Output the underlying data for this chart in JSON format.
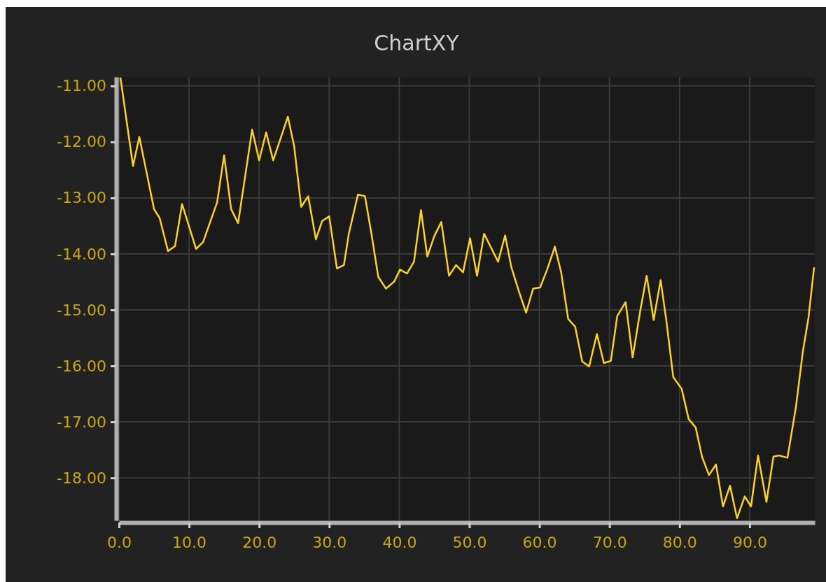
{
  "chart_data": {
    "type": "line",
    "title": "ChartXY",
    "xlim": [
      0,
      99.3
    ],
    "ylim": [
      -18.76,
      -10.84
    ],
    "xticks": [
      {
        "value": 0,
        "label": "0.0"
      },
      {
        "value": 10,
        "label": "10.0"
      },
      {
        "value": 20,
        "label": "20.0"
      },
      {
        "value": 30,
        "label": "30.0"
      },
      {
        "value": 40,
        "label": "40.0"
      },
      {
        "value": 50,
        "label": "50.0"
      },
      {
        "value": 60,
        "label": "60.0"
      },
      {
        "value": 70,
        "label": "70.0"
      },
      {
        "value": 80,
        "label": "80.0"
      },
      {
        "value": 90,
        "label": "90.0"
      }
    ],
    "yticks": [
      {
        "value": -11,
        "label": "-11.00"
      },
      {
        "value": -12,
        "label": "-12.00"
      },
      {
        "value": -13,
        "label": "-13.00"
      },
      {
        "value": -14,
        "label": "-14.00"
      },
      {
        "value": -15,
        "label": "-15.00"
      },
      {
        "value": -16,
        "label": "-16.00"
      },
      {
        "value": -17,
        "label": "-17.00"
      },
      {
        "value": -18,
        "label": "-18.00"
      }
    ],
    "grid": true,
    "series": [
      {
        "color": "#ffd21f",
        "x": [
          0.2,
          2.0,
          2.9,
          5.0,
          5.8,
          7.0,
          8.0,
          9.0,
          11.0,
          12.0,
          14.0,
          15.0,
          16.0,
          17.0,
          19.0,
          20.0,
          21.0,
          22.0,
          24.1,
          25.0,
          26.0,
          27.0,
          28.1,
          29.0,
          30.0,
          31.1,
          32.1,
          32.8,
          34.1,
          35.1,
          36.0,
          37.0,
          38.1,
          39.3,
          40.1,
          41.1,
          42.1,
          43.1,
          44.0,
          45.0,
          46.0,
          47.1,
          48.1,
          49.1,
          50.1,
          51.1,
          52.1,
          53.1,
          54.1,
          55.1,
          56.0,
          57.1,
          58.1,
          59.1,
          60.1,
          61.1,
          62.2,
          63.1,
          64.1,
          65.1,
          66.1,
          67.1,
          68.2,
          69.2,
          70.2,
          71.1,
          72.3,
          73.3,
          74.4,
          75.3,
          76.3,
          77.3,
          78.1,
          79.1,
          80.3,
          81.3,
          82.3,
          83.2,
          84.2,
          85.2,
          86.2,
          87.2,
          88.2,
          89.3,
          90.2,
          91.2,
          92.4,
          93.4,
          94.2,
          95.4,
          96.6,
          97.6,
          98.4,
          99.2
        ],
        "values": [
          -10.85,
          -12.43,
          -11.91,
          -13.2,
          -13.36,
          -13.95,
          -13.86,
          -13.11,
          -13.91,
          -13.79,
          -13.08,
          -12.24,
          -13.2,
          -13.45,
          -11.78,
          -12.33,
          -11.83,
          -12.33,
          -11.55,
          -12.08,
          -13.16,
          -12.97,
          -13.74,
          -13.41,
          -13.33,
          -14.26,
          -14.2,
          -13.64,
          -12.94,
          -12.97,
          -13.62,
          -14.41,
          -14.62,
          -14.49,
          -14.28,
          -14.35,
          -14.14,
          -13.22,
          -14.05,
          -13.68,
          -13.43,
          -14.39,
          -14.2,
          -14.33,
          -13.72,
          -14.39,
          -13.64,
          -13.89,
          -14.14,
          -13.67,
          -14.24,
          -14.68,
          -15.05,
          -14.62,
          -14.6,
          -14.28,
          -13.87,
          -14.33,
          -15.16,
          -15.3,
          -15.92,
          -16.01,
          -15.43,
          -15.95,
          -15.91,
          -15.11,
          -14.86,
          -15.85,
          -15.01,
          -14.39,
          -15.18,
          -14.47,
          -15.18,
          -16.2,
          -16.41,
          -16.95,
          -17.1,
          -17.62,
          -17.95,
          -17.76,
          -18.51,
          -18.14,
          -18.72,
          -18.33,
          -18.51,
          -17.6,
          -18.43,
          -17.62,
          -17.6,
          -17.64,
          -16.74,
          -15.74,
          -15.14,
          -14.24
        ]
      }
    ]
  }
}
